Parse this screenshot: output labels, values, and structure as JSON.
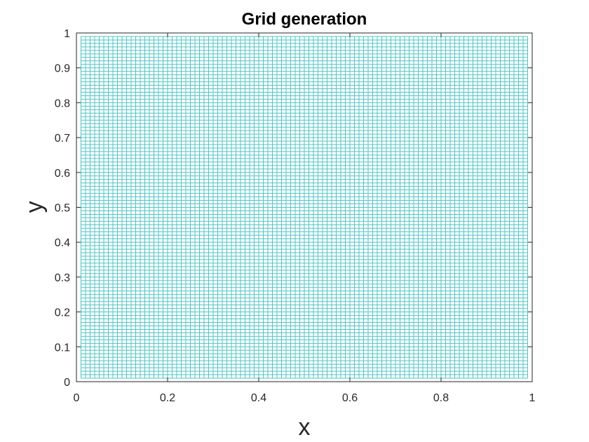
{
  "chart_data": {
    "type": "line",
    "title": "Grid generation",
    "xlabel": "x",
    "ylabel": "y",
    "xlim": [
      0,
      1
    ],
    "ylim": [
      0,
      1
    ],
    "x_ticks": [
      0,
      0.2,
      0.4,
      0.6,
      0.8,
      1
    ],
    "y_ticks": [
      0,
      0.1,
      0.2,
      0.3,
      0.4,
      0.5,
      0.6,
      0.7,
      0.8,
      0.9,
      1
    ],
    "x_tick_labels": [
      "0",
      "0.2",
      "0.4",
      "0.6",
      "0.8",
      "1"
    ],
    "y_tick_labels": [
      "0",
      "0.1",
      "0.2",
      "0.3",
      "0.4",
      "0.5",
      "0.6",
      "0.7",
      "0.8",
      "0.9",
      "1"
    ],
    "grid": false,
    "mesh": {
      "x_min": 0.01,
      "x_max": 0.99,
      "x_count": 99,
      "y_min": 0.01,
      "y_max": 0.99,
      "y_count": 99
    },
    "mesh_color": "#4fc4c4",
    "axis_color": "#262626"
  }
}
